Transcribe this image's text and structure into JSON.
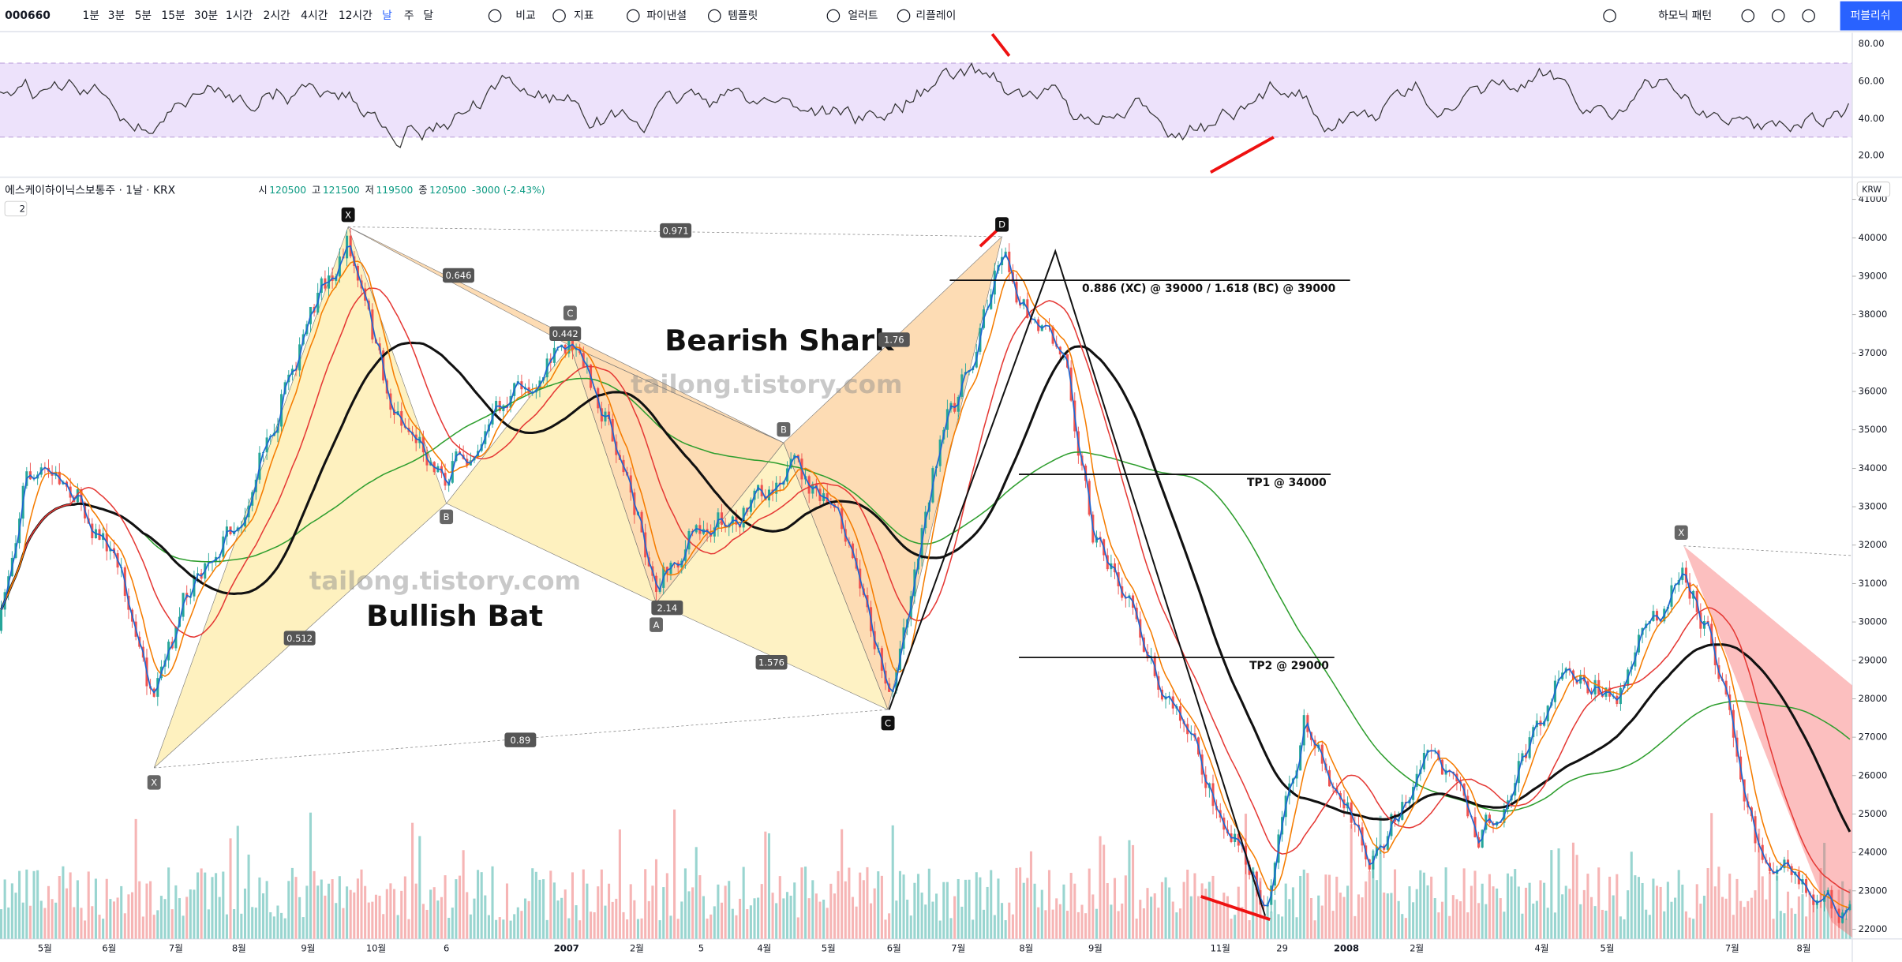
{
  "toolbar": {
    "symbol": "000660",
    "intervals": [
      "1분",
      "3분",
      "5분",
      "15분",
      "30분",
      "1시간",
      "2시간",
      "4시간",
      "12시간"
    ],
    "periods": [
      "날",
      "주",
      "달"
    ],
    "buttons": [
      "비교",
      "지표",
      "파이낸셜",
      "템플릿",
      "얼러트",
      "리플레이"
    ],
    "pattern_menu": "하모닉 패턴",
    "publish": "퍼블리쉬"
  },
  "legend": {
    "symbol": "에스케이하이닉스보통주 · 1날 · KRX",
    "ohlc": [
      {
        "label": "시",
        "value": "120500"
      },
      {
        "label": "고",
        "value": "121500"
      },
      {
        "label": "저",
        "value": "119500"
      },
      {
        "label": "종",
        "value": "120500"
      }
    ],
    "change": "-3000 (-2.43%)",
    "collapse": "2"
  },
  "rsi_axis": [
    "80.00",
    "60.00",
    "40.00",
    "20.00"
  ],
  "price_axis": {
    "currency": "KRW",
    "ticks": [
      41000,
      40000,
      39000,
      38000,
      37000,
      36000,
      35000,
      34000,
      33000,
      32000,
      31000,
      30000,
      29000,
      28000,
      27000,
      26000,
      25000,
      24000,
      23000,
      22000
    ]
  },
  "time_axis": [
    "5월",
    "6월",
    "7월",
    "8월",
    "9월",
    "10월",
    "6",
    "2007",
    "2월",
    "5",
    "4월",
    "5월",
    "6월",
    "7월",
    "8월",
    "9월",
    "11월",
    "29",
    "2008",
    "2월",
    "4월",
    "5월",
    "7월",
    "8월"
  ],
  "annotations": {
    "titles": [
      "Bearish Shark",
      "Bullish Bat"
    ],
    "watermark": "tailong.tistory.com",
    "levels": [
      "0.886 (XC) @ 39000 / 1.618 (BC) @ 39000",
      "TP1 @ 34000",
      "TP2 @ 29000"
    ],
    "points": [
      "X",
      "C",
      "B",
      "A",
      "B",
      "C",
      "D",
      "X",
      "X"
    ],
    "ratios": [
      "0.971",
      "0.646",
      "0.442",
      "1.76",
      "0.512",
      "2.14",
      "1.576",
      "0.89"
    ]
  }
}
